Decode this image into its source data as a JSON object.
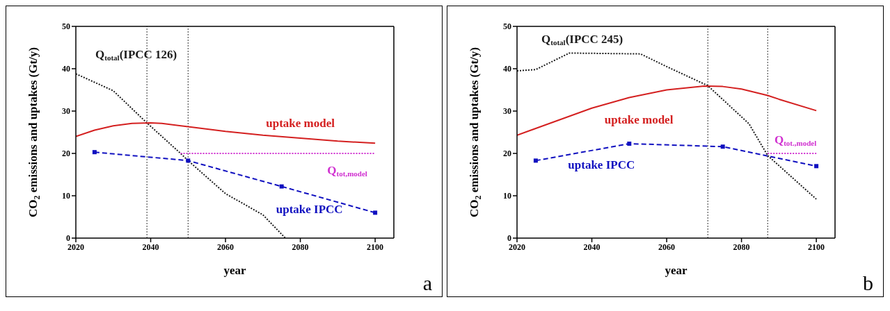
{
  "chart_data": [
    {
      "type": "line",
      "xlabel": "year",
      "ylabel": "CO$_{2}$ emissions and uptakes (Gt/y)",
      "xlim": [
        2020,
        2105
      ],
      "ylim": [
        0,
        50
      ],
      "xticks": [
        2020,
        2040,
        2060,
        2080,
        2100
      ],
      "yticks": [
        0,
        10,
        20,
        30,
        40,
        50
      ],
      "series": [
        {
          "name": "Q$_{total}$(IPCC 126)",
          "color": "#1a1a1a",
          "line_style": "dotted",
          "marker": "none",
          "x": [
            2020,
            2030,
            2039,
            2048,
            2050,
            2060,
            2070,
            2076
          ],
          "values": [
            38.8,
            34.8,
            27.2,
            20,
            18.3,
            10.5,
            5.5,
            0
          ]
        },
        {
          "name": "uptake model",
          "color": "#d42020",
          "line_style": "solid",
          "marker": "none",
          "x": [
            2020,
            2025,
            2030,
            2035,
            2040,
            2043,
            2050,
            2060,
            2070,
            2080,
            2090,
            2100
          ],
          "values": [
            24,
            25.5,
            26.5,
            27.1,
            27.2,
            27.1,
            26.3,
            25.2,
            24.3,
            23.6,
            22.9,
            22.4
          ]
        },
        {
          "name": "uptake IPCC",
          "color": "#1010c0",
          "line_style": "dashed",
          "marker": "square",
          "x": [
            2025,
            2050,
            2075,
            2100
          ],
          "values": [
            20.3,
            18.3,
            12.2,
            6
          ]
        },
        {
          "name": "Q$_{tot,model}$",
          "color": "#d030d0",
          "line_style": "dotted",
          "marker": "none",
          "x": [
            2048,
            2100
          ],
          "values": [
            20,
            20
          ]
        }
      ],
      "ref_lines": [
        {
          "axis": "x",
          "value": 2039,
          "color": "#333333",
          "line_style": "dotted"
        },
        {
          "axis": "x",
          "value": 2050,
          "color": "#333333",
          "line_style": "dotted"
        }
      ],
      "annotations": [
        "a"
      ]
    },
    {
      "type": "line",
      "xlabel": "year",
      "ylabel": "CO$_{2}$ emissions and uptakes (Gt/y)",
      "xlim": [
        2020,
        2105
      ],
      "ylim": [
        0,
        50
      ],
      "xticks": [
        2020,
        2040,
        2060,
        2080,
        2100
      ],
      "yticks": [
        0,
        10,
        20,
        30,
        40,
        50
      ],
      "series": [
        {
          "name": "Q$_{total}$(IPCC 245)",
          "color": "#1a1a1a",
          "line_style": "dotted",
          "marker": "none",
          "x": [
            2020,
            2025,
            2034,
            2053,
            2060,
            2071,
            2082,
            2087,
            2100
          ],
          "values": [
            39.5,
            39.8,
            43.7,
            43.5,
            40.5,
            36,
            27,
            19.5,
            9.2
          ]
        },
        {
          "name": "uptake model",
          "color": "#d42020",
          "line_style": "solid",
          "marker": "none",
          "x": [
            2020,
            2030,
            2040,
            2050,
            2060,
            2070,
            2075,
            2080,
            2087,
            2090,
            2100
          ],
          "values": [
            24.3,
            27.5,
            30.7,
            33.2,
            35,
            35.9,
            35.8,
            35.2,
            33.7,
            32.8,
            30.1
          ]
        },
        {
          "name": "uptake IPCC",
          "color": "#1010c0",
          "line_style": "dashed",
          "marker": "square",
          "x": [
            2025,
            2050,
            2075,
            2100
          ],
          "values": [
            18.3,
            22.3,
            21.6,
            17
          ]
        },
        {
          "name": "Q$_{tot.,model}$",
          "color": "#d030d0",
          "line_style": "dotted",
          "marker": "none",
          "x": [
            2087,
            2100
          ],
          "values": [
            20,
            20
          ]
        }
      ],
      "ref_lines": [
        {
          "axis": "x",
          "value": 2071,
          "color": "#333333",
          "line_style": "dotted"
        },
        {
          "axis": "x",
          "value": 2087,
          "color": "#333333",
          "line_style": "dotted"
        }
      ],
      "annotations": [
        "b"
      ]
    }
  ]
}
